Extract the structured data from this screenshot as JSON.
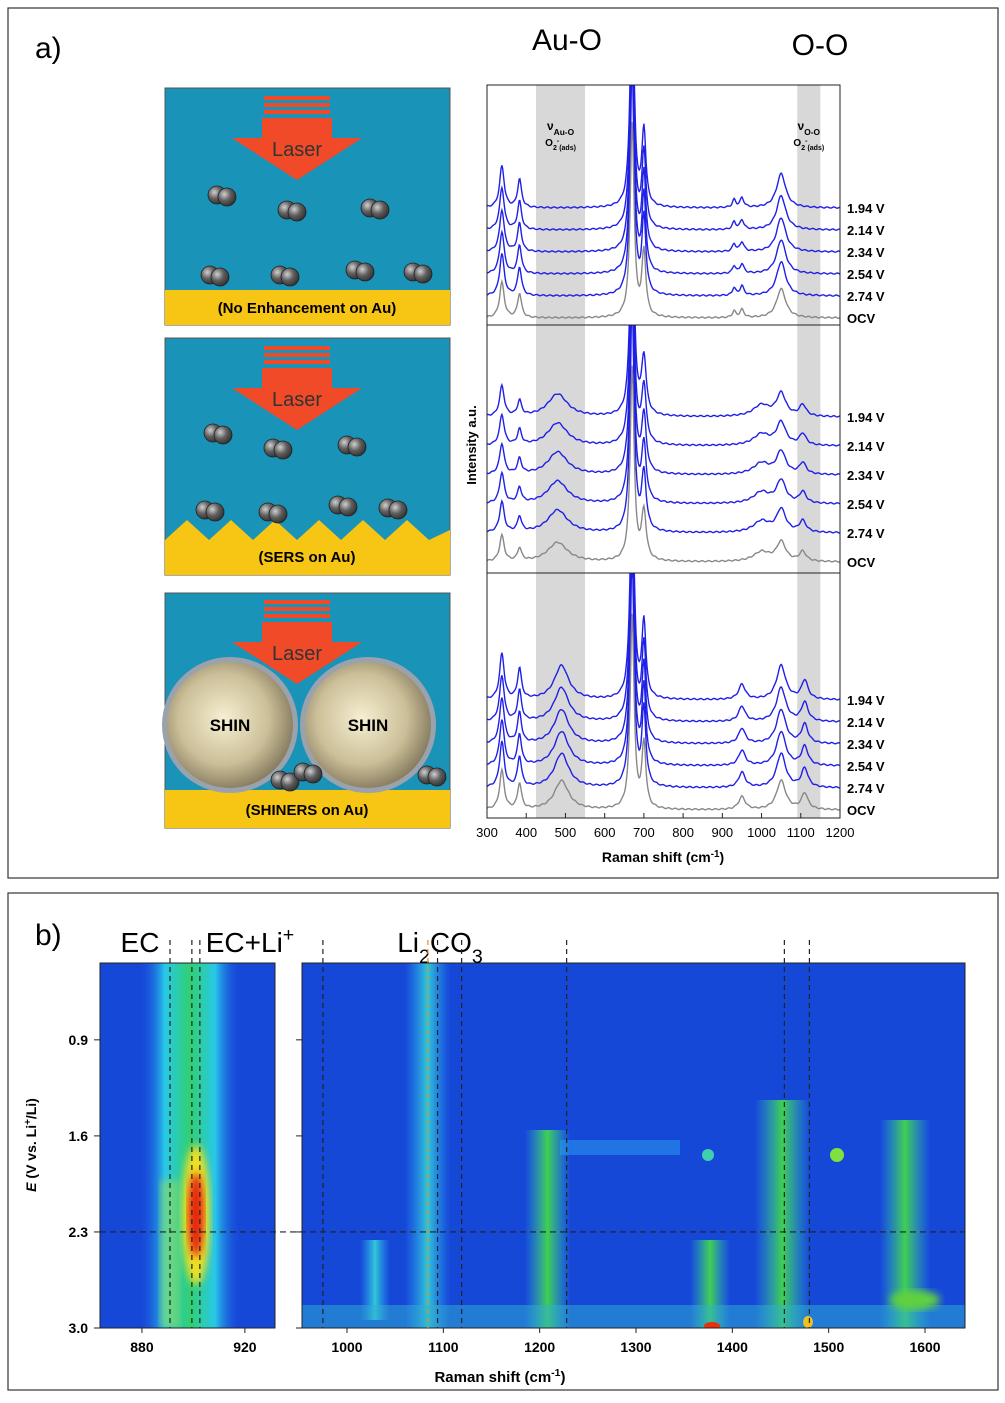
{
  "panel_a": {
    "label": "a)",
    "headers": [
      "Au-O",
      "O-O"
    ],
    "diagrams": [
      {
        "laser": "Laser",
        "caption": "(No Enhancement on Au)"
      },
      {
        "laser": "Laser",
        "caption": "(SERS on Au)"
      },
      {
        "laser": "Laser",
        "caption": "(SHINERS on Au)",
        "spheres": [
          "SHIN",
          "SHIN"
        ]
      }
    ],
    "spectra": {
      "xlim": [
        300,
        1200
      ],
      "xticks": [
        300,
        400,
        500,
        600,
        700,
        800,
        900,
        1000,
        1100,
        1200
      ],
      "xlabel": {
        "text": "Raman shift (cm",
        "sup": "-1",
        "end": ")"
      },
      "ylabel": "Intensity a.u.",
      "bands": [
        {
          "range": [
            425,
            550
          ],
          "symbol": "ν",
          "sub": "Au-O",
          "species": "O",
          "species_sub": "2",
          "species_sup": "-",
          "species_sub2": "(ads)"
        },
        {
          "range": [
            1091,
            1150
          ],
          "symbol": "ν",
          "sub": "O-O",
          "species": "O",
          "species_sub": "2",
          "species_sup": "-",
          "species_sub2": "(ads)"
        }
      ],
      "frames": [
        {
          "peaks": [
            [
              338,
              1.1,
              7
            ],
            [
              383,
              0.75,
              6
            ],
            [
              670,
              6,
              6
            ],
            [
              700,
              2,
              6
            ],
            [
              930,
              0.2,
              5
            ],
            [
              950,
              0.25,
              6
            ],
            [
              1050,
              0.9,
              14
            ]
          ],
          "traces": [
            "1.94 V",
            "2.14 V",
            "2.34 V",
            "2.54 V",
            "2.74 V",
            "OCV"
          ]
        },
        {
          "peaks": [
            [
              338,
              0.8,
              7
            ],
            [
              383,
              0.4,
              6
            ],
            [
              480,
              0.6,
              30
            ],
            [
              670,
              6,
              6
            ],
            [
              700,
              1.5,
              7
            ],
            [
              1000,
              0.3,
              25
            ],
            [
              1050,
              0.6,
              14
            ],
            [
              1105,
              0.3,
              10
            ]
          ],
          "traces": [
            "1.94 V",
            "2.14 V",
            "2.34 V",
            "2.54 V",
            "2.74 V",
            "OCV"
          ]
        },
        {
          "peaks": [
            [
              338,
              1.2,
              7
            ],
            [
              383,
              0.8,
              6
            ],
            [
              490,
              0.9,
              22
            ],
            [
              670,
              6,
              6
            ],
            [
              700,
              2,
              6
            ],
            [
              950,
              0.4,
              10
            ],
            [
              1050,
              0.9,
              14
            ],
            [
              1110,
              0.5,
              10
            ]
          ],
          "traces": [
            "1.94 V",
            "2.14 V",
            "2.34 V",
            "2.54 V",
            "2.74 V",
            "OCV"
          ]
        }
      ]
    }
  },
  "panel_b": {
    "label": "b)",
    "headers": [
      {
        "text": "EC"
      },
      {
        "text": "EC+Li",
        "sup": "+"
      },
      {
        "text": "Li",
        "sub": "2",
        "text2": "CO",
        "sub2": "3"
      }
    ],
    "ylabel": {
      "italic": "E",
      "text": " (V vs. Li",
      "sup": "+",
      "end": "/Li)"
    },
    "ylim": [
      0.34,
      3.0
    ],
    "yticks": [
      0.9,
      1.6,
      2.3,
      {
        "value": 3,
        "label": "3.0"
      }
    ],
    "xlabel": {
      "text": "Raman shift (cm",
      "sup": "-1",
      "end": ")"
    },
    "hline": 2.3,
    "maps": [
      {
        "xlim": [
          863.7,
          931.7
        ],
        "xticks": [
          880,
          920
        ],
        "lines": [
          890.9,
          899.4,
          902.5
        ]
      },
      {
        "xlim": [
          953.3,
          1641.5
        ],
        "xticks": [
          1000,
          1100,
          1200,
          1300,
          1400,
          1500,
          1600
        ],
        "lines": [
          975,
          1094,
          1119,
          1228,
          1454,
          1480
        ],
        "highlight_lines": [
          1084
        ]
      }
    ]
  }
}
